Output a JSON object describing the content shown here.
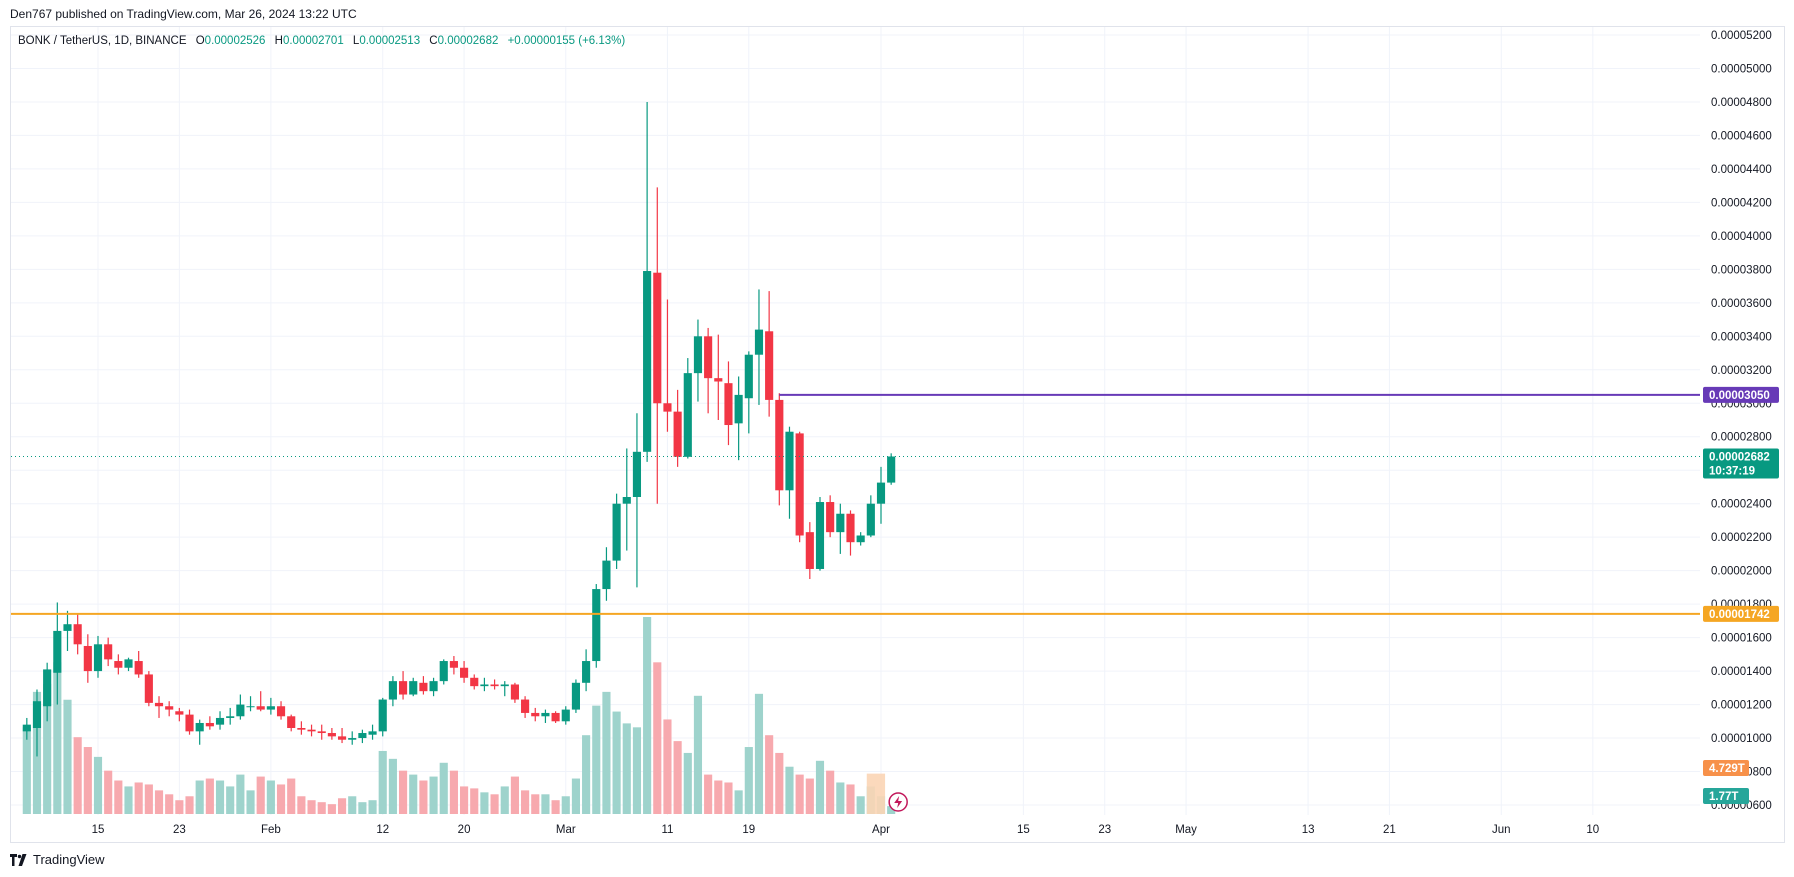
{
  "header": {
    "published": "Den767 published on TradingView.com, Mar 26, 2024 13:22 UTC"
  },
  "legend": {
    "symbol": "BONK / TetherUS, 1D, BINANCE",
    "open_key": "O",
    "open": "0.00002526",
    "high_key": "H",
    "high": "0.00002701",
    "low_key": "L",
    "low": "0.00002513",
    "close_key": "C",
    "close": "0.00002682",
    "change": "+0.00000155 (+6.13%)"
  },
  "footer": {
    "brand": "TradingView"
  },
  "colors": {
    "up": "#089981",
    "down": "#f23645",
    "vol_up": "#9ed3cc",
    "vol_down": "#f7a9ae",
    "resistance": "#673ab7",
    "support": "#f5a623",
    "grid": "#f0f3fa",
    "axis_text": "#131722"
  },
  "chart_data": {
    "type": "candlestick",
    "y_axis": {
      "min": 5.8e-06,
      "max": 5.3e-06,
      "ticks": [
        "0.00005200",
        "0.00005000",
        "0.00004800",
        "0.00004600",
        "0.00004400",
        "0.00004200",
        "0.00004000",
        "0.00003800",
        "0.00003600",
        "0.00003400",
        "0.00003200",
        "0.00003000",
        "0.00002800",
        "0.00002600",
        "0.00002400",
        "0.00002200",
        "0.00002000",
        "0.00001800",
        "0.00001600",
        "0.00001400",
        "0.00001200",
        "0.00001000",
        "0.00000800",
        "0.00000600"
      ]
    },
    "x_axis": {
      "labels": [
        {
          "text": "15",
          "date": "2024-01-15"
        },
        {
          "text": "23",
          "date": "2024-01-23"
        },
        {
          "text": "Feb",
          "date": "2024-02-01"
        },
        {
          "text": "12",
          "date": "2024-02-12"
        },
        {
          "text": "20",
          "date": "2024-02-20"
        },
        {
          "text": "Mar",
          "date": "2024-03-01"
        },
        {
          "text": "11",
          "date": "2024-03-11"
        },
        {
          "text": "19",
          "date": "2024-03-19"
        },
        {
          "text": "Apr",
          "date": "2024-04-01"
        },
        {
          "text": "15",
          "date": "2024-04-15"
        },
        {
          "text": "23",
          "date": "2024-04-23"
        },
        {
          "text": "May",
          "date": "2024-05-01"
        },
        {
          "text": "13",
          "date": "2024-05-13"
        },
        {
          "text": "21",
          "date": "2024-05-21"
        },
        {
          "text": "Jun",
          "date": "2024-06-01"
        },
        {
          "text": "10",
          "date": "2024-06-10"
        }
      ]
    },
    "candles": [
      {
        "date": "2024-01-08",
        "o": 1.04e-05,
        "h": 1.12e-05,
        "l": 9.9e-06,
        "c": 1.08e-05,
        "v": 0.44
      },
      {
        "date": "2024-01-09",
        "o": 1.06e-05,
        "h": 1.29e-05,
        "l": 8.9e-06,
        "c": 1.22e-05,
        "v": 0.62
      },
      {
        "date": "2024-01-10",
        "o": 1.19e-05,
        "h": 1.45e-05,
        "l": 1.1e-05,
        "c": 1.41e-05,
        "v": 0.66
      },
      {
        "date": "2024-01-11",
        "o": 1.39e-05,
        "h": 1.81e-05,
        "l": 1.2e-05,
        "c": 1.64e-05,
        "v": 0.77
      },
      {
        "date": "2024-01-12",
        "o": 1.64e-05,
        "h": 1.76e-05,
        "l": 1.52e-05,
        "c": 1.68e-05,
        "v": 0.58
      },
      {
        "date": "2024-01-13",
        "o": 1.68e-05,
        "h": 1.74e-05,
        "l": 1.5e-05,
        "c": 1.56e-05,
        "v": 0.39
      },
      {
        "date": "2024-01-14",
        "o": 1.55e-05,
        "h": 1.62e-05,
        "l": 1.33e-05,
        "c": 1.4e-05,
        "v": 0.34
      },
      {
        "date": "2024-01-15",
        "o": 1.4e-05,
        "h": 1.61e-05,
        "l": 1.36e-05,
        "c": 1.56e-05,
        "v": 0.29
      },
      {
        "date": "2024-01-16",
        "o": 1.56e-05,
        "h": 1.6e-05,
        "l": 1.43e-05,
        "c": 1.47e-05,
        "v": 0.22
      },
      {
        "date": "2024-01-17",
        "o": 1.46e-05,
        "h": 1.5e-05,
        "l": 1.38e-05,
        "c": 1.42e-05,
        "v": 0.17
      },
      {
        "date": "2024-01-18",
        "o": 1.42e-05,
        "h": 1.48e-05,
        "l": 1.4e-05,
        "c": 1.47e-05,
        "v": 0.14
      },
      {
        "date": "2024-01-19",
        "o": 1.46e-05,
        "h": 1.52e-05,
        "l": 1.36e-05,
        "c": 1.38e-05,
        "v": 0.16
      },
      {
        "date": "2024-01-20",
        "o": 1.38e-05,
        "h": 1.4e-05,
        "l": 1.19e-05,
        "c": 1.21e-05,
        "v": 0.15
      },
      {
        "date": "2024-01-21",
        "o": 1.21e-05,
        "h": 1.25e-05,
        "l": 1.12e-05,
        "c": 1.19e-05,
        "v": 0.12
      },
      {
        "date": "2024-01-22",
        "o": 1.19e-05,
        "h": 1.22e-05,
        "l": 1.13e-05,
        "c": 1.17e-05,
        "v": 0.1
      },
      {
        "date": "2024-01-23",
        "o": 1.16e-05,
        "h": 1.18e-05,
        "l": 1.1e-05,
        "c": 1.14e-05,
        "v": 0.07
      },
      {
        "date": "2024-01-24",
        "o": 1.14e-05,
        "h": 1.17e-05,
        "l": 1.02e-05,
        "c": 1.04e-05,
        "v": 0.09
      },
      {
        "date": "2024-01-25",
        "o": 1.04e-05,
        "h": 1.11e-05,
        "l": 9.6e-06,
        "c": 1.09e-05,
        "v": 0.17
      },
      {
        "date": "2024-01-26",
        "o": 1.09e-05,
        "h": 1.13e-05,
        "l": 1.05e-05,
        "c": 1.07e-05,
        "v": 0.18
      },
      {
        "date": "2024-01-27",
        "o": 1.08e-05,
        "h": 1.16e-05,
        "l": 1.05e-05,
        "c": 1.12e-05,
        "v": 0.17
      },
      {
        "date": "2024-01-28",
        "o": 1.12e-05,
        "h": 1.18e-05,
        "l": 1.08e-05,
        "c": 1.13e-05,
        "v": 0.14
      },
      {
        "date": "2024-01-29",
        "o": 1.13e-05,
        "h": 1.26e-05,
        "l": 1.11e-05,
        "c": 1.2e-05,
        "v": 0.2
      },
      {
        "date": "2024-01-30",
        "o": 1.19e-05,
        "h": 1.25e-05,
        "l": 1.16e-05,
        "c": 1.19e-05,
        "v": 0.12
      },
      {
        "date": "2024-01-31",
        "o": 1.19e-05,
        "h": 1.28e-05,
        "l": 1.16e-05,
        "c": 1.17e-05,
        "v": 0.19
      },
      {
        "date": "2024-02-01",
        "o": 1.17e-05,
        "h": 1.24e-05,
        "l": 1.14e-05,
        "c": 1.19e-05,
        "v": 0.17
      },
      {
        "date": "2024-02-02",
        "o": 1.19e-05,
        "h": 1.22e-05,
        "l": 1.11e-05,
        "c": 1.13e-05,
        "v": 0.15
      },
      {
        "date": "2024-02-03",
        "o": 1.13e-05,
        "h": 1.14e-05,
        "l": 1.04e-05,
        "c": 1.06e-05,
        "v": 0.18
      },
      {
        "date": "2024-02-04",
        "o": 1.06e-05,
        "h": 1.1e-05,
        "l": 1.02e-05,
        "c": 1.05e-05,
        "v": 0.09
      },
      {
        "date": "2024-02-05",
        "o": 1.05e-05,
        "h": 1.08e-05,
        "l": 1.01e-05,
        "c": 1.04e-05,
        "v": 0.07
      },
      {
        "date": "2024-02-06",
        "o": 1.04e-05,
        "h": 1.08e-05,
        "l": 9.9e-06,
        "c": 1.03e-05,
        "v": 0.06
      },
      {
        "date": "2024-02-07",
        "o": 1.03e-05,
        "h": 1.06e-05,
        "l": 9.9e-06,
        "c": 1.01e-05,
        "v": 0.05
      },
      {
        "date": "2024-02-08",
        "o": 1.01e-05,
        "h": 1.06e-05,
        "l": 9.7e-06,
        "c": 9.9e-06,
        "v": 0.08
      },
      {
        "date": "2024-02-09",
        "o": 9.9e-06,
        "h": 1.04e-05,
        "l": 9.6e-06,
        "c": 1e-05,
        "v": 0.09
      },
      {
        "date": "2024-02-10",
        "o": 1e-05,
        "h": 1.05e-05,
        "l": 9.7e-06,
        "c": 1.03e-05,
        "v": 0.06
      },
      {
        "date": "2024-02-11",
        "o": 1.02e-05,
        "h": 1.08e-05,
        "l": 9.9e-06,
        "c": 1.04e-05,
        "v": 0.07
      },
      {
        "date": "2024-02-12",
        "o": 1.04e-05,
        "h": 1.24e-05,
        "l": 1.01e-05,
        "c": 1.23e-05,
        "v": 0.32
      },
      {
        "date": "2024-02-13",
        "o": 1.23e-05,
        "h": 1.37e-05,
        "l": 1.19e-05,
        "c": 1.34e-05,
        "v": 0.28
      },
      {
        "date": "2024-02-14",
        "o": 1.34e-05,
        "h": 1.4e-05,
        "l": 1.23e-05,
        "c": 1.26e-05,
        "v": 0.22
      },
      {
        "date": "2024-02-15",
        "o": 1.26e-05,
        "h": 1.36e-05,
        "l": 1.25e-05,
        "c": 1.34e-05,
        "v": 0.2
      },
      {
        "date": "2024-02-16",
        "o": 1.33e-05,
        "h": 1.37e-05,
        "l": 1.26e-05,
        "c": 1.28e-05,
        "v": 0.17
      },
      {
        "date": "2024-02-17",
        "o": 1.28e-05,
        "h": 1.36e-05,
        "l": 1.25e-05,
        "c": 1.34e-05,
        "v": 0.19
      },
      {
        "date": "2024-02-18",
        "o": 1.34e-05,
        "h": 1.47e-05,
        "l": 1.32e-05,
        "c": 1.46e-05,
        "v": 0.26
      },
      {
        "date": "2024-02-19",
        "o": 1.46e-05,
        "h": 1.49e-05,
        "l": 1.38e-05,
        "c": 1.42e-05,
        "v": 0.22
      },
      {
        "date": "2024-02-20",
        "o": 1.42e-05,
        "h": 1.46e-05,
        "l": 1.33e-05,
        "c": 1.36e-05,
        "v": 0.14
      },
      {
        "date": "2024-02-21",
        "o": 1.36e-05,
        "h": 1.38e-05,
        "l": 1.29e-05,
        "c": 1.31e-05,
        "v": 0.13
      },
      {
        "date": "2024-02-22",
        "o": 1.31e-05,
        "h": 1.36e-05,
        "l": 1.28e-05,
        "c": 1.32e-05,
        "v": 0.11
      },
      {
        "date": "2024-02-23",
        "o": 1.32e-05,
        "h": 1.35e-05,
        "l": 1.29e-05,
        "c": 1.31e-05,
        "v": 0.1
      },
      {
        "date": "2024-02-24",
        "o": 1.31e-05,
        "h": 1.34e-05,
        "l": 1.25e-05,
        "c": 1.32e-05,
        "v": 0.14
      },
      {
        "date": "2024-02-25",
        "o": 1.32e-05,
        "h": 1.33e-05,
        "l": 1.21e-05,
        "c": 1.23e-05,
        "v": 0.19
      },
      {
        "date": "2024-02-26",
        "o": 1.23e-05,
        "h": 1.25e-05,
        "l": 1.12e-05,
        "c": 1.15e-05,
        "v": 0.12
      },
      {
        "date": "2024-02-27",
        "o": 1.15e-05,
        "h": 1.18e-05,
        "l": 1.1e-05,
        "c": 1.13e-05,
        "v": 0.1
      },
      {
        "date": "2024-02-28",
        "o": 1.13e-05,
        "h": 1.17e-05,
        "l": 1.09e-05,
        "c": 1.15e-05,
        "v": 0.1
      },
      {
        "date": "2024-02-29",
        "o": 1.15e-05,
        "h": 1.16e-05,
        "l": 1.09e-05,
        "c": 1.1e-05,
        "v": 0.07
      },
      {
        "date": "2024-03-01",
        "o": 1.1e-05,
        "h": 1.19e-05,
        "l": 1.08e-05,
        "c": 1.17e-05,
        "v": 0.09
      },
      {
        "date": "2024-03-02",
        "o": 1.17e-05,
        "h": 1.35e-05,
        "l": 1.15e-05,
        "c": 1.33e-05,
        "v": 0.18
      },
      {
        "date": "2024-03-03",
        "o": 1.33e-05,
        "h": 1.53e-05,
        "l": 1.28e-05,
        "c": 1.46e-05,
        "v": 0.4
      },
      {
        "date": "2024-03-04",
        "o": 1.46e-05,
        "h": 1.92e-05,
        "l": 1.42e-05,
        "c": 1.89e-05,
        "v": 0.55
      },
      {
        "date": "2024-03-05",
        "o": 1.89e-05,
        "h": 2.14e-05,
        "l": 1.82e-05,
        "c": 2.06e-05,
        "v": 0.62
      },
      {
        "date": "2024-03-06",
        "o": 2.06e-05,
        "h": 2.46e-05,
        "l": 2.01e-05,
        "c": 2.4e-05,
        "v": 0.52
      },
      {
        "date": "2024-03-07",
        "o": 2.4e-05,
        "h": 2.73e-05,
        "l": 2.12e-05,
        "c": 2.44e-05,
        "v": 0.46
      },
      {
        "date": "2024-03-08",
        "o": 2.44e-05,
        "h": 2.94e-05,
        "l": 1.9e-05,
        "c": 2.71e-05,
        "v": 0.44
      },
      {
        "date": "2024-03-09",
        "o": 2.71e-05,
        "h": 4.8e-05,
        "l": 2.65e-05,
        "c": 3.79e-05,
        "v": 1.0
      },
      {
        "date": "2024-03-10",
        "o": 3.78e-05,
        "h": 4.29e-05,
        "l": 2.4e-05,
        "c": 3e-05,
        "v": 0.77
      },
      {
        "date": "2024-03-11",
        "o": 3e-05,
        "h": 3.62e-05,
        "l": 2.83e-05,
        "c": 2.95e-05,
        "v": 0.48
      },
      {
        "date": "2024-03-12",
        "o": 2.95e-05,
        "h": 3.08e-05,
        "l": 2.62e-05,
        "c": 2.68e-05,
        "v": 0.37
      },
      {
        "date": "2024-03-13",
        "o": 2.68e-05,
        "h": 3.27e-05,
        "l": 2.67e-05,
        "c": 3.18e-05,
        "v": 0.31
      },
      {
        "date": "2024-03-14",
        "o": 3.18e-05,
        "h": 3.5e-05,
        "l": 3.01e-05,
        "c": 3.4e-05,
        "v": 0.6
      },
      {
        "date": "2024-03-15",
        "o": 3.4e-05,
        "h": 3.45e-05,
        "l": 2.94e-05,
        "c": 3.15e-05,
        "v": 0.2
      },
      {
        "date": "2024-03-16",
        "o": 3.15e-05,
        "h": 3.41e-05,
        "l": 2.9e-05,
        "c": 3.13e-05,
        "v": 0.17
      },
      {
        "date": "2024-03-17",
        "o": 3.12e-05,
        "h": 3.25e-05,
        "l": 2.75e-05,
        "c": 2.87e-05,
        "v": 0.16
      },
      {
        "date": "2024-03-18",
        "o": 2.88e-05,
        "h": 3.16e-05,
        "l": 2.66e-05,
        "c": 3.05e-05,
        "v": 0.12
      },
      {
        "date": "2024-03-19",
        "o": 3.03e-05,
        "h": 3.31e-05,
        "l": 2.82e-05,
        "c": 3.29e-05,
        "v": 0.34
      },
      {
        "date": "2024-03-20",
        "o": 3.29e-05,
        "h": 3.68e-05,
        "l": 2.99e-05,
        "c": 3.44e-05,
        "v": 0.61
      },
      {
        "date": "2024-03-21",
        "o": 3.43e-05,
        "h": 3.67e-05,
        "l": 2.92e-05,
        "c": 3.02e-05,
        "v": 0.4
      },
      {
        "date": "2024-03-22",
        "o": 3.02e-05,
        "h": 3.06e-05,
        "l": 2.39e-05,
        "c": 2.48e-05,
        "v": 0.31
      },
      {
        "date": "2024-03-23",
        "o": 2.48e-05,
        "h": 2.86e-05,
        "l": 2.31e-05,
        "c": 2.83e-05,
        "v": 0.24
      },
      {
        "date": "2024-03-24",
        "o": 2.82e-05,
        "h": 2.83e-05,
        "l": 2.17e-05,
        "c": 2.21e-05,
        "v": 0.2
      },
      {
        "date": "2024-03-25",
        "o": 2.23e-05,
        "h": 2.29e-05,
        "l": 1.95e-05,
        "c": 2.01e-05,
        "v": 0.18
      },
      {
        "date": "2024-03-26",
        "o": 2.01e-05,
        "h": 2.44e-05,
        "l": 2e-05,
        "c": 2.41e-05,
        "v": 0.27
      },
      {
        "date": "2024-03-27",
        "o": 2.41e-05,
        "h": 2.45e-05,
        "l": 2.2e-05,
        "c": 2.23e-05,
        "v": 0.22
      },
      {
        "date": "2024-03-28",
        "o": 2.23e-05,
        "h": 2.4e-05,
        "l": 2.1e-05,
        "c": 2.34e-05,
        "v": 0.16
      },
      {
        "date": "2024-03-29",
        "o": 2.34e-05,
        "h": 2.36e-05,
        "l": 2.09e-05,
        "c": 2.17e-05,
        "v": 0.15
      },
      {
        "date": "2024-03-30",
        "o": 2.17e-05,
        "h": 2.23e-05,
        "l": 2.15e-05,
        "c": 2.21e-05,
        "v": 0.09
      },
      {
        "date": "2024-03-31",
        "o": 2.21e-05,
        "h": 2.45e-05,
        "l": 2.2e-05,
        "c": 2.4e-05,
        "v": 0.14
      },
      {
        "date": "2024-04-01",
        "o": 2.4e-05,
        "h": 2.62e-05,
        "l": 2.28e-05,
        "c": 2.526e-05,
        "v": 0.09
      },
      {
        "date": "2024-04-02",
        "o": 2.526e-05,
        "h": 2.701e-05,
        "l": 2.513e-05,
        "c": 2.682e-05,
        "v": 0.04
      }
    ],
    "horizontal_lines": [
      {
        "price": 3.05e-05,
        "label": "0.00003050",
        "color": "#673ab7",
        "from_date": "2024-03-22"
      },
      {
        "price": 1.742e-05,
        "label": "0.00001742",
        "color": "#f5a623",
        "from_date": null
      }
    ],
    "last_price": {
      "price": 2.682e-05,
      "label": "0.00002682",
      "countdown": "10:37:19"
    },
    "volume_labels": [
      {
        "label": "4.729T",
        "color": "#f7914a"
      },
      {
        "label": "1.77T",
        "color": "#26a69a"
      }
    ],
    "volume_projection": {
      "dates": [
        "2024-03-31",
        "2024-04-01"
      ],
      "level": 0.82
    }
  }
}
